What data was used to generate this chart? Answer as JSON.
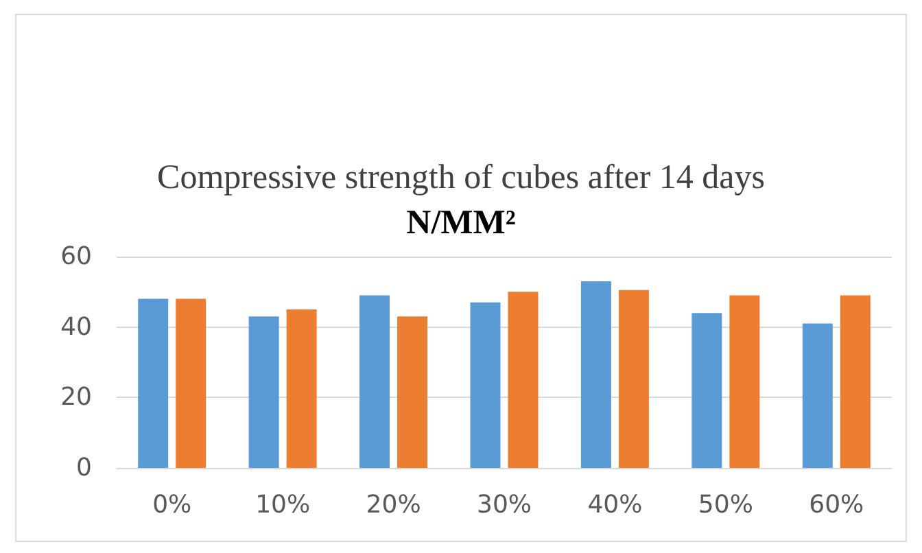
{
  "chart_data": {
    "type": "bar",
    "title": "Compressive strength of cubes after 14 days",
    "subtitle": "N/MM²",
    "categories": [
      "0%",
      "10%",
      "20%",
      "30%",
      "40%",
      "50%",
      "60%"
    ],
    "series": [
      {
        "color": "#5b9bd5",
        "values": [
          48,
          43,
          49,
          47,
          53,
          44,
          41
        ]
      },
      {
        "color": "#ed7d31",
        "values": [
          48,
          45,
          43,
          50,
          50.5,
          49,
          49
        ]
      }
    ],
    "ylim": [
      0,
      60
    ],
    "yticks": [
      0,
      20,
      40,
      60
    ],
    "grid": "y"
  }
}
